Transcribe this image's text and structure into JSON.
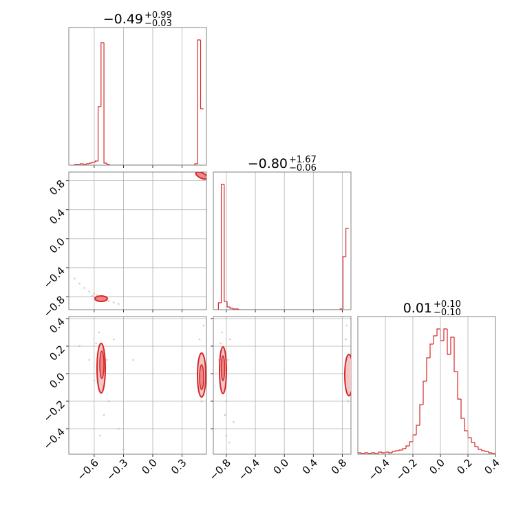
{
  "chart_data": [
    {
      "type": "histogram",
      "color": "#d62728",
      "title": {
        "main": "−0.49",
        "upper": "+0.99",
        "lower": "−0.03"
      },
      "bins": [
        -0.8,
        -0.77,
        -0.74,
        -0.71,
        -0.68,
        -0.65,
        -0.62,
        -0.59,
        -0.56,
        -0.53,
        -0.5,
        -0.47,
        -0.44,
        -0.41,
        -0.38,
        -0.35,
        -0.32,
        -0.29,
        -0.26,
        -0.23,
        -0.2,
        -0.17,
        -0.14,
        -0.11,
        -0.08,
        -0.05,
        -0.02,
        0.01,
        0.04,
        0.07,
        0.1,
        0.13,
        0.16,
        0.19,
        0.22,
        0.25,
        0.28,
        0.31,
        0.34,
        0.37,
        0.4,
        0.43,
        0.46,
        0.49,
        0.52
      ],
      "counts": [
        1,
        1,
        2,
        1,
        2,
        3,
        4,
        6,
        85,
        178,
        3,
        1,
        0,
        0,
        0,
        0,
        0,
        0,
        0,
        0,
        0,
        0,
        0,
        0,
        0,
        0,
        0,
        0,
        0,
        0,
        0,
        0,
        0,
        0,
        0,
        0,
        0,
        0,
        0,
        0,
        0,
        2,
        182,
        82
      ],
      "xlim": [
        -0.86,
        0.55
      ],
      "ylim": [
        0,
        200
      ],
      "xticks": [
        {
          "value": -0.6,
          "label": "−0.6"
        },
        {
          "value": -0.3,
          "label": "−0.3"
        },
        {
          "value": 0,
          "label": "0.0"
        },
        {
          "value": 0.3,
          "label": "0.3"
        }
      ],
      "show_xtick_labels": false,
      "grid": true
    },
    {
      "type": "scatter",
      "color": "#d62728",
      "x": [
        -0.52,
        -0.52,
        -0.55,
        -0.5,
        -0.6,
        -0.65,
        -0.7,
        -0.75,
        -0.8,
        -0.45,
        -0.4,
        -0.35,
        -0.57,
        -0.48,
        0.5,
        0.52,
        0.48,
        0.53,
        -0.62,
        -0.54
      ],
      "y": [
        -0.82,
        -0.83,
        -0.8,
        -0.84,
        -0.76,
        -0.73,
        -0.68,
        -0.62,
        -0.55,
        -0.86,
        -0.88,
        -0.9,
        -0.78,
        -0.81,
        0.87,
        0.86,
        0.88,
        0.84,
        -0.79,
        -0.85
      ],
      "xlim": [
        -0.86,
        0.55
      ],
      "ylim": [
        -0.98,
        0.92
      ],
      "xticks": [
        {
          "value": -0.6,
          "label": "−0.6"
        },
        {
          "value": -0.3,
          "label": "−0.3"
        },
        {
          "value": 0,
          "label": "0.0"
        },
        {
          "value": 0.3,
          "label": "0.3"
        }
      ],
      "yticks": [
        {
          "value": 0.8,
          "label": "0.8"
        },
        {
          "value": 0.4,
          "label": "0.4"
        },
        {
          "value": 0,
          "label": "0.0"
        },
        {
          "value": -0.4,
          "label": "−0.4"
        },
        {
          "value": -0.8,
          "label": "−0.8"
        }
      ],
      "show_xtick_labels": false,
      "show_ytick_labels": true,
      "grid": true
    },
    {
      "type": "histogram",
      "color": "#d62728",
      "title": {
        "main": "−0.80",
        "upper": "+1.67",
        "lower": "−0.06"
      },
      "bins": [
        -0.95,
        -0.91,
        -0.87,
        -0.83,
        -0.79,
        -0.75,
        -0.71,
        -0.67,
        -0.63,
        -0.59,
        -0.55,
        -0.51,
        -0.47,
        -0.43,
        -0.39,
        -0.35,
        -0.31,
        -0.27,
        -0.23,
        -0.19,
        -0.15,
        -0.11,
        -0.07,
        -0.03,
        0.01,
        0.05,
        0.09,
        0.13,
        0.17,
        0.21,
        0.25,
        0.29,
        0.33,
        0.37,
        0.41,
        0.45,
        0.49,
        0.53,
        0.57,
        0.61,
        0.65,
        0.69,
        0.73,
        0.77,
        0.81,
        0.85,
        0.89
      ],
      "counts": [
        0,
        10,
        182,
        12,
        4,
        2,
        1,
        1,
        0,
        0,
        0,
        0,
        0,
        0,
        0,
        0,
        0,
        0,
        0,
        0,
        0,
        0,
        0,
        0,
        0,
        0,
        0,
        0,
        0,
        0,
        0,
        0,
        0,
        0,
        0,
        0,
        0,
        0,
        0,
        0,
        0,
        0,
        0,
        1,
        77,
        118
      ],
      "xlim": [
        -0.98,
        0.92
      ],
      "ylim": [
        0,
        200
      ],
      "xticks": [
        {
          "value": -0.8,
          "label": "−0.8"
        },
        {
          "value": -0.4,
          "label": "−0.4"
        },
        {
          "value": 0,
          "label": "0.0"
        },
        {
          "value": 0.4,
          "label": "0.4"
        },
        {
          "value": 0.8,
          "label": "0.8"
        }
      ],
      "show_xtick_labels": false,
      "grid": true
    },
    {
      "type": "scatter",
      "color": "#d62728",
      "x": [
        -0.52,
        -0.53,
        -0.51,
        -0.55,
        -0.5,
        -0.54,
        -0.58,
        -0.47,
        -0.6,
        -0.45,
        -0.4,
        -0.65,
        -0.2,
        -0.3,
        0.49,
        0.5,
        0.51,
        0.48,
        0.52,
        0.5,
        0.46,
        -0.75,
        -0.35
      ],
      "y": [
        0.05,
        -0.1,
        0.15,
        0.3,
        -0.3,
        -0.45,
        0.22,
        0.1,
        -0.05,
        -0.2,
        0.25,
        0.1,
        0.1,
        -0.55,
        -0.05,
        0.1,
        -0.15,
        0.25,
        0.35,
        -0.2,
        0.0,
        0.2,
        -0.4
      ],
      "xlim": [
        -0.86,
        0.55
      ],
      "ylim": [
        -0.585,
        0.415
      ],
      "xticks": [
        {
          "value": -0.6,
          "label": "−0.6"
        },
        {
          "value": -0.3,
          "label": "−0.3"
        },
        {
          "value": 0,
          "label": "0.0"
        },
        {
          "value": 0.3,
          "label": "0.3"
        }
      ],
      "yticks": [
        {
          "value": 0.4,
          "label": "0.4"
        },
        {
          "value": 0.2,
          "label": "0.2"
        },
        {
          "value": 0,
          "label": "0.0"
        },
        {
          "value": -0.2,
          "label": "−0.2"
        },
        {
          "value": -0.4,
          "label": "−0.4"
        }
      ],
      "show_xtick_labels": true,
      "show_ytick_labels": true,
      "grid": true
    },
    {
      "type": "scatter",
      "color": "#d62728",
      "x": [
        -0.84,
        -0.85,
        -0.83,
        -0.86,
        -0.82,
        -0.8,
        -0.88,
        -0.78,
        -0.86,
        -0.8,
        -0.75,
        -0.9,
        -0.7,
        -0.76,
        0.87,
        0.88,
        0.89,
        0.85,
        0.86,
        0.88,
        0.84
      ],
      "y": [
        0.05,
        -0.1,
        0.15,
        0.3,
        -0.3,
        -0.45,
        0.22,
        0.1,
        -0.05,
        -0.2,
        0.25,
        0.1,
        -0.35,
        -0.5,
        -0.05,
        0.1,
        -0.15,
        0.25,
        0.35,
        -0.2,
        0.0
      ],
      "xlim": [
        -0.98,
        0.92
      ],
      "ylim": [
        -0.585,
        0.415
      ],
      "xticks": [
        {
          "value": -0.8,
          "label": "−0.8"
        },
        {
          "value": -0.4,
          "label": "−0.4"
        },
        {
          "value": 0,
          "label": "0.0"
        },
        {
          "value": 0.4,
          "label": "0.4"
        },
        {
          "value": 0.8,
          "label": "0.8"
        }
      ],
      "yticks": [
        {
          "value": 0.4,
          "label": "0.4"
        },
        {
          "value": 0.2,
          "label": "0.2"
        },
        {
          "value": 0,
          "label": "0.0"
        },
        {
          "value": -0.2,
          "label": "−0.2"
        },
        {
          "value": -0.4,
          "label": "−0.4"
        }
      ],
      "show_xtick_labels": true,
      "show_ytick_labels": false,
      "grid": true
    },
    {
      "type": "histogram",
      "color": "#d62728",
      "title": {
        "main": "0.01",
        "upper": "+0.10",
        "lower": "−0.10"
      },
      "bins": [
        -0.6,
        -0.575,
        -0.55,
        -0.525,
        -0.5,
        -0.475,
        -0.45,
        -0.425,
        -0.4,
        -0.375,
        -0.35,
        -0.325,
        -0.3,
        -0.275,
        -0.25,
        -0.225,
        -0.2,
        -0.175,
        -0.15,
        -0.125,
        -0.1,
        -0.075,
        -0.05,
        -0.025,
        0,
        0.025,
        0.05,
        0.075,
        0.1,
        0.125,
        0.15,
        0.175,
        0.2,
        0.225,
        0.25,
        0.275,
        0.3,
        0.325,
        0.35,
        0.375,
        0.4
      ],
      "counts": [
        2,
        1,
        2,
        1,
        2,
        1,
        3,
        2,
        3,
        2,
        4,
        5,
        6,
        8,
        12,
        18,
        28,
        42,
        72,
        106,
        140,
        160,
        172,
        182,
        165,
        182,
        145,
        170,
        120,
        80,
        52,
        34,
        24,
        17,
        11,
        7,
        5,
        4,
        2,
        1
      ],
      "xlim": [
        -0.6,
        0.4
      ],
      "ylim": [
        0,
        200
      ],
      "xticks": [
        {
          "value": -0.4,
          "label": "−0.4"
        },
        {
          "value": -0.2,
          "label": "−0.2"
        },
        {
          "value": 0,
          "label": "0.0"
        },
        {
          "value": 0.2,
          "label": "0.2"
        },
        {
          "value": 0.4,
          "label": "0.4"
        }
      ],
      "show_xtick_labels": true,
      "grid": true
    }
  ]
}
